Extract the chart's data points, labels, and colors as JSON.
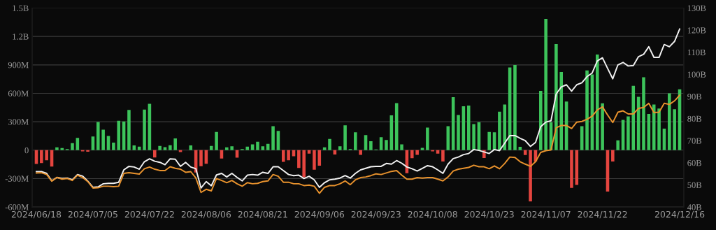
{
  "chart_data": {
    "type": "bar",
    "categories": [
      "2024/06/18",
      null,
      null,
      null,
      null,
      null,
      null,
      null,
      null,
      null,
      null,
      "2024/07/05",
      null,
      null,
      null,
      null,
      null,
      null,
      null,
      null,
      null,
      null,
      "2024/07/22",
      null,
      null,
      null,
      null,
      null,
      null,
      null,
      null,
      null,
      null,
      "2024/08/06",
      null,
      null,
      null,
      null,
      null,
      null,
      null,
      null,
      null,
      null,
      "2024/08/21",
      null,
      null,
      null,
      null,
      null,
      null,
      null,
      null,
      null,
      null,
      "2024/09/06",
      null,
      null,
      null,
      null,
      null,
      null,
      null,
      null,
      null,
      null,
      "2024/09/23",
      null,
      null,
      null,
      null,
      null,
      null,
      null,
      null,
      null,
      null,
      "2024/10/08",
      null,
      null,
      null,
      null,
      null,
      null,
      null,
      null,
      null,
      null,
      "2024/10/23",
      null,
      null,
      null,
      null,
      null,
      null,
      null,
      null,
      null,
      null,
      "2024/11/07",
      null,
      null,
      null,
      null,
      null,
      null,
      null,
      null,
      null,
      null,
      "2024/11/22",
      null,
      null,
      null,
      null,
      null,
      null,
      null,
      null,
      null,
      null,
      null,
      null,
      null,
      null,
      "2024/12/16"
    ],
    "series": [
      {
        "values": [
          -145000000.0,
          -136000000.0,
          -107000000.0,
          -174000000.0,
          30000000.0,
          22000000.0,
          12000000.0,
          74000000.0,
          129000000.0,
          -12000000.0,
          -17000000.0,
          144000000.0,
          298000000.0,
          216000000.0,
          149000000.0,
          79000000.0,
          310000000.0,
          303000000.0,
          424000000.0,
          50000000.0,
          37000000.0,
          429000000.0,
          489000000.0,
          -77000000.0,
          45000000.0,
          32000000.0,
          52000000.0,
          124000000.0,
          -20000000.0,
          0,
          50000000.0,
          -236000000.0,
          -169000000.0,
          -144000000.0,
          45000000.0,
          193000000.0,
          -89000000.0,
          30000000.0,
          40000000.0,
          -79000000.0,
          12000000.0,
          37000000.0,
          62000000.0,
          89000000.0,
          40000000.0,
          67000000.0,
          253000000.0,
          203000000.0,
          -124000000.0,
          -107000000.0,
          -64000000.0,
          -188000000.0,
          -285000000.0,
          -37000000.0,
          -206000000.0,
          -164000000.0,
          30000000.0,
          119000000.0,
          -45000000.0,
          40000000.0,
          263000000.0,
          12000000.0,
          188000000.0,
          -50000000.0,
          159000000.0,
          94000000.0,
          7000000.0,
          136000000.0,
          107000000.0,
          367000000.0,
          496000000.0,
          62000000.0,
          -243000000.0,
          -84000000.0,
          -50000000.0,
          25000000.0,
          238000000.0,
          -12000000.0,
          -37000000.0,
          -119000000.0,
          253000000.0,
          560000000.0,
          372000000.0,
          464000000.0,
          471000000.0,
          275000000.0,
          295000000.0,
          -82000000.0,
          193000000.0,
          188000000.0,
          407000000.0,
          481000000.0,
          873000000.0,
          898000000.0,
          35000000.0,
          -52000000.0,
          -541000000.0,
          -119000000.0,
          625000000.0,
          1386000000.0,
          295000000.0,
          1121000000.0,
          824000000.0,
          513000000.0,
          -399000000.0,
          -367000000.0,
          253000000.0,
          841000000.0,
          799000000.0,
          1009000000.0,
          494000000.0,
          -437000000.0,
          -119000000.0,
          104000000.0,
          320000000.0,
          357000000.0,
          680000000.0,
          563000000.0,
          769000000.0,
          382000000.0,
          481000000.0,
          439000000.0,
          228000000.0,
          600000000.0,
          432000000.0,
          642000000.0
        ],
        "colors": [
          "#e5453f",
          "#e5453f",
          "#e5453f",
          "#e5453f",
          "#3dc45b",
          "#3dc45b",
          "#3dc45b",
          "#3dc45b",
          "#3dc45b",
          "#e5453f",
          "#e5453f",
          "#3dc45b",
          "#3dc45b",
          "#3dc45b",
          "#3dc45b",
          "#3dc45b",
          "#3dc45b",
          "#3dc45b",
          "#3dc45b",
          "#3dc45b",
          "#3dc45b",
          "#3dc45b",
          "#3dc45b",
          "#e5453f",
          "#3dc45b",
          "#3dc45b",
          "#3dc45b",
          "#3dc45b",
          "#e5453f",
          "#3dc45b",
          "#3dc45b",
          "#e5453f",
          "#e5453f",
          "#e5453f",
          "#3dc45b",
          "#3dc45b",
          "#e5453f",
          "#3dc45b",
          "#3dc45b",
          "#e5453f",
          "#3dc45b",
          "#3dc45b",
          "#3dc45b",
          "#3dc45b",
          "#3dc45b",
          "#3dc45b",
          "#3dc45b",
          "#3dc45b",
          "#e5453f",
          "#e5453f",
          "#e5453f",
          "#e5453f",
          "#e5453f",
          "#e5453f",
          "#e5453f",
          "#e5453f",
          "#3dc45b",
          "#3dc45b",
          "#e5453f",
          "#3dc45b",
          "#3dc45b",
          "#3dc45b",
          "#3dc45b",
          "#e5453f",
          "#3dc45b",
          "#3dc45b",
          "#3dc45b",
          "#3dc45b",
          "#3dc45b",
          "#3dc45b",
          "#3dc45b",
          "#3dc45b",
          "#e5453f",
          "#e5453f",
          "#e5453f",
          "#3dc45b",
          "#3dc45b",
          "#e5453f",
          "#e5453f",
          "#e5453f",
          "#3dc45b",
          "#3dc45b",
          "#3dc45b",
          "#3dc45b",
          "#3dc45b",
          "#3dc45b",
          "#3dc45b",
          "#e5453f",
          "#3dc45b",
          "#3dc45b",
          "#3dc45b",
          "#3dc45b",
          "#3dc45b",
          "#3dc45b",
          "#3dc45b",
          "#e5453f",
          "#e5453f",
          "#e5453f",
          "#3dc45b",
          "#3dc45b",
          "#3dc45b",
          "#3dc45b",
          "#3dc45b",
          "#3dc45b",
          "#e5453f",
          "#e5453f",
          "#3dc45b",
          "#3dc45b",
          "#3dc45b",
          "#3dc45b",
          "#3dc45b",
          "#e5453f",
          "#e5453f",
          "#3dc45b",
          "#3dc45b",
          "#3dc45b",
          "#3dc45b",
          "#3dc45b",
          "#3dc45b",
          "#3dc45b",
          "#3dc45b",
          "#3dc45b",
          "#3dc45b",
          "#3dc45b",
          "#3dc45b",
          "#3dc45b"
        ]
      },
      {
        "type": "line",
        "axis": "y2",
        "color": "#f0f0f0",
        "values": [
          56.0,
          56.0,
          55.2,
          51.8,
          53.4,
          52.9,
          53.1,
          52.3,
          54.7,
          54.0,
          51.7,
          48.9,
          49.1,
          50.5,
          50.7,
          50.7,
          51.2,
          56.8,
          58.4,
          58.1,
          57.1,
          60.5,
          61.8,
          60.7,
          60.2,
          59.1,
          61.8,
          61.6,
          58.4,
          60.2,
          58.1,
          57.3,
          48.6,
          51.5,
          49.6,
          54.5,
          55.2,
          53.6,
          55.2,
          53.4,
          51.8,
          54.4,
          54.7,
          54.4,
          55.7,
          55.2,
          58.2,
          58.2,
          56.5,
          54.7,
          54.2,
          54.4,
          52.9,
          53.9,
          52.3,
          48.9,
          51.0,
          52.3,
          52.6,
          53.1,
          54.2,
          53.1,
          55.2,
          56.8,
          57.5,
          58.2,
          58.4,
          58.4,
          59.7,
          59.4,
          61.0,
          59.8,
          58.1,
          57.3,
          56.3,
          57.5,
          58.7,
          58.2,
          56.8,
          55.2,
          59.4,
          61.9,
          62.6,
          63.7,
          64.2,
          66.0,
          65.6,
          64.9,
          64.2,
          66.0,
          65.5,
          68.9,
          72.3,
          72.3,
          71.1,
          70.0,
          67.4,
          69.2,
          76.3,
          78.4,
          79.0,
          91.1,
          94.3,
          95.3,
          92.4,
          95.3,
          96.2,
          99.0,
          100.6,
          106.1,
          107.5,
          102.7,
          98.0,
          104.3,
          105.4,
          103.8,
          104.0,
          108.0,
          109.1,
          112.5,
          107.7,
          107.7,
          113.5,
          112.5,
          114.9,
          120.5
        ]
      },
      {
        "type": "line",
        "axis": "y2",
        "color": "#e8922d",
        "values": [
          55.4,
          55.5,
          54.7,
          51.7,
          53.4,
          52.6,
          52.9,
          52.0,
          54.4,
          53.3,
          51.5,
          48.6,
          48.7,
          49.4,
          49.4,
          49.2,
          49.4,
          55.2,
          55.5,
          55.2,
          54.9,
          57.3,
          58.1,
          57.1,
          56.5,
          56.5,
          58.2,
          57.5,
          57.1,
          55.7,
          56.0,
          53.1,
          46.6,
          48.0,
          47.3,
          52.9,
          52.0,
          51.0,
          52.0,
          50.5,
          49.4,
          51.0,
          50.5,
          50.7,
          51.5,
          51.8,
          54.7,
          53.9,
          51.2,
          51.2,
          50.5,
          50.5,
          49.7,
          49.9,
          49.4,
          46.2,
          48.9,
          49.7,
          49.7,
          50.5,
          51.8,
          50.1,
          52.3,
          53.3,
          53.6,
          54.2,
          55.0,
          54.7,
          55.4,
          56.1,
          56.5,
          54.4,
          52.6,
          52.6,
          53.3,
          53.1,
          53.3,
          53.3,
          52.6,
          51.8,
          53.6,
          56.3,
          57.1,
          57.5,
          57.9,
          58.9,
          58.2,
          58.2,
          57.3,
          58.6,
          57.3,
          59.7,
          62.6,
          62.4,
          60.5,
          59.4,
          58.4,
          60.5,
          64.7,
          65.5,
          65.8,
          75.8,
          76.9,
          76.9,
          75.5,
          78.4,
          78.7,
          79.7,
          81.1,
          83.9,
          85.3,
          81.6,
          78.2,
          82.9,
          83.5,
          82.1,
          82.1,
          84.6,
          85.0,
          86.9,
          82.7,
          82.9,
          86.9,
          86.4,
          88.0,
          90.6
        ]
      }
    ],
    "ylim": [
      -600000000.0,
      1500000000.0
    ],
    "yticks": [
      {
        "value": -600000000.0,
        "label": "-600M"
      },
      {
        "value": -300000000.0,
        "label": "-300M"
      },
      0,
      {
        "value": 300000000.0,
        "label": "300M"
      },
      {
        "value": 600000000.0,
        "label": "600M"
      },
      {
        "value": 900000000.0,
        "label": "900M"
      },
      {
        "value": 1200000000.0,
        "label": "1.2B"
      },
      {
        "value": 1500000000.0,
        "label": "1.5B"
      }
    ],
    "y2lim": [
      40,
      130
    ],
    "y2ticks": [
      {
        "value": 40,
        "label": "40B"
      },
      {
        "value": 50,
        "label": "50B"
      },
      {
        "value": 60,
        "label": "60B"
      },
      {
        "value": 70,
        "label": "70B"
      },
      {
        "value": 80,
        "label": "80B"
      },
      {
        "value": 90,
        "label": "90B"
      },
      {
        "value": 100,
        "label": "100B"
      },
      {
        "value": 110,
        "label": "110B"
      },
      {
        "value": 120,
        "label": "120B"
      },
      {
        "value": 130,
        "label": "130B"
      }
    ],
    "grid": "y",
    "marker": "none",
    "line_style": "solid"
  }
}
